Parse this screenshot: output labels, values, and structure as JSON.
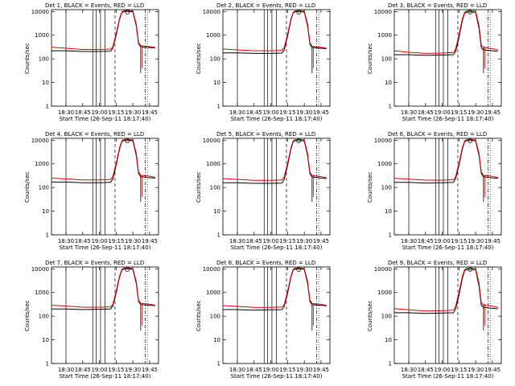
{
  "colors": {
    "events": "#000000",
    "lld": "#e00000",
    "axes": "#000000",
    "background": "#ffffff"
  },
  "chart_data": [
    {
      "type": "line",
      "title": "Det 1, BLACK = Events, RED = LLD",
      "ylabel": "Counts/sec",
      "xlabel": "Start Time (26-Sep-11 18:17:40)",
      "x_ticks": [
        "18:30",
        "18:45",
        "19:00",
        "19:15",
        "19:30",
        "19:45"
      ],
      "y_ticks": [
        "1",
        "10",
        "100",
        "1000",
        "10000"
      ],
      "ylim": [
        1,
        12000
      ],
      "scale": "log",
      "series": [
        {
          "name": "Events",
          "values_x": [
            "18:17",
            "18:30",
            "18:45",
            "19:00",
            "19:10",
            "19:12",
            "19:15",
            "19:18",
            "19:20",
            "19:22",
            "19:27",
            "19:30",
            "19:33",
            "19:35",
            "19:37",
            "19:45",
            "19:50"
          ],
          "values_y": [
            220,
            220,
            205,
            205,
            210,
            280,
            1000,
            4500,
            9000,
            10000,
            10000,
            9800,
            2500,
            450,
            320,
            300,
            290
          ]
        },
        {
          "name": "LLD",
          "values_x": [
            "18:17",
            "18:30",
            "18:45",
            "19:00",
            "19:10",
            "19:12",
            "19:15",
            "19:18",
            "19:20",
            "19:22",
            "19:27",
            "19:30",
            "19:33",
            "19:35",
            "19:37",
            "19:45",
            "19:50"
          ],
          "values_y": [
            310,
            280,
            250,
            250,
            260,
            320,
            1200,
            5000,
            9500,
            11000,
            11000,
            10500,
            3000,
            500,
            360,
            330,
            300
          ]
        }
      ]
    },
    {
      "type": "line",
      "title": "Det 2, BLACK = Events, RED = LLD",
      "ylabel": "Counts/sec",
      "xlabel": "Start Time (26-Sep-11 18:17:40)",
      "x_ticks": [
        "18:30",
        "18:45",
        "19:00",
        "19:15",
        "19:30",
        "19:45"
      ],
      "y_ticks": [
        "1",
        "10",
        "100",
        "1000",
        "10000"
      ],
      "ylim": [
        1,
        12000
      ],
      "scale": "log",
      "series": [
        {
          "name": "Events",
          "values_x": [
            "18:17",
            "18:30",
            "18:45",
            "19:00",
            "19:10",
            "19:12",
            "19:15",
            "19:18",
            "19:20",
            "19:22",
            "19:27",
            "19:30",
            "19:33",
            "19:35",
            "19:37",
            "19:45",
            "19:50"
          ],
          "values_y": [
            180,
            180,
            170,
            170,
            175,
            240,
            900,
            4300,
            8800,
            9800,
            9800,
            9500,
            2400,
            420,
            300,
            280,
            270
          ]
        },
        {
          "name": "LLD",
          "values_x": [
            "18:17",
            "18:30",
            "18:45",
            "19:00",
            "19:10",
            "19:12",
            "19:15",
            "19:18",
            "19:20",
            "19:22",
            "19:27",
            "19:30",
            "19:33",
            "19:35",
            "19:37",
            "19:45",
            "19:50"
          ],
          "values_y": [
            260,
            240,
            220,
            220,
            230,
            300,
            1100,
            4800,
            9300,
            10800,
            10800,
            10300,
            2900,
            480,
            340,
            310,
            280
          ]
        }
      ]
    },
    {
      "type": "line",
      "title": "Det 3, BLACK = Events, RED = LLD",
      "ylabel": "Counts/sec",
      "xlabel": "Start Time (26-Sep-11 18:17:40)",
      "x_ticks": [
        "18:30",
        "18:45",
        "19:00",
        "19:15",
        "19:30",
        "19:45"
      ],
      "y_ticks": [
        "1",
        "10",
        "100",
        "1000",
        "10000"
      ],
      "ylim": [
        1,
        12000
      ],
      "scale": "log",
      "series": [
        {
          "name": "Events",
          "values_x": [
            "18:17",
            "18:30",
            "18:45",
            "19:00",
            "19:10",
            "19:12",
            "19:15",
            "19:18",
            "19:20",
            "19:22",
            "19:27",
            "19:30",
            "19:33",
            "19:35",
            "19:37",
            "19:45",
            "19:50"
          ],
          "values_y": [
            150,
            150,
            140,
            145,
            150,
            200,
            800,
            4000,
            8500,
            9500,
            9500,
            9200,
            1900,
            300,
            240,
            220,
            210
          ]
        },
        {
          "name": "LLD",
          "values_x": [
            "18:17",
            "18:30",
            "18:45",
            "19:00",
            "19:10",
            "19:12",
            "19:15",
            "19:18",
            "19:20",
            "19:22",
            "19:27",
            "19:30",
            "19:33",
            "19:35",
            "19:37",
            "19:45",
            "19:50"
          ],
          "values_y": [
            220,
            190,
            170,
            175,
            185,
            260,
            1050,
            4700,
            9200,
            10700,
            10700,
            10200,
            2500,
            380,
            300,
            270,
            240
          ]
        }
      ]
    },
    {
      "type": "line",
      "title": "Det 4, BLACK = Events, RED = LLD",
      "ylabel": "Counts/sec",
      "xlabel": "Start Time (26-Sep-11 18:17:40)",
      "x_ticks": [
        "18:30",
        "18:45",
        "19:00",
        "19:15",
        "19:30",
        "19:45"
      ],
      "y_ticks": [
        "1",
        "10",
        "100",
        "1000",
        "10000"
      ],
      "ylim": [
        1,
        12000
      ],
      "scale": "log",
      "series": [
        {
          "name": "Events",
          "values_x": [
            "18:17",
            "18:30",
            "18:45",
            "19:00",
            "19:10",
            "19:12",
            "19:15",
            "19:18",
            "19:20",
            "19:22",
            "19:27",
            "19:30",
            "19:33",
            "19:35",
            "19:37",
            "19:45",
            "19:50"
          ],
          "values_y": [
            170,
            170,
            160,
            160,
            165,
            230,
            880,
            4200,
            8700,
            9700,
            9700,
            9400,
            2300,
            400,
            290,
            260,
            250
          ]
        },
        {
          "name": "LLD",
          "values_x": [
            "18:17",
            "18:30",
            "18:45",
            "19:00",
            "19:10",
            "19:12",
            "19:15",
            "19:18",
            "19:20",
            "19:22",
            "19:27",
            "19:30",
            "19:33",
            "19:35",
            "19:37",
            "19:45",
            "19:50"
          ],
          "values_y": [
            250,
            230,
            210,
            210,
            220,
            290,
            1080,
            4750,
            9250,
            10750,
            10750,
            10250,
            2800,
            460,
            330,
            300,
            270
          ]
        }
      ]
    },
    {
      "type": "line",
      "title": "Det 5, BLACK = Events, RED = LLD",
      "ylabel": "Counts/sec",
      "xlabel": "Start Time (26-Sep-11 18:17:40)",
      "x_ticks": [
        "18:30",
        "18:45",
        "19:00",
        "19:15",
        "19:30",
        "19:45"
      ],
      "y_ticks": [
        "1",
        "10",
        "100",
        "1000",
        "10000"
      ],
      "ylim": [
        1,
        12000
      ],
      "scale": "log",
      "series": [
        {
          "name": "Events",
          "values_x": [
            "18:17",
            "18:30",
            "18:45",
            "19:00",
            "19:10",
            "19:12",
            "19:15",
            "19:18",
            "19:20",
            "19:22",
            "19:27",
            "19:30",
            "19:33",
            "19:35",
            "19:37",
            "19:45",
            "19:50"
          ],
          "values_y": [
            160,
            160,
            150,
            150,
            155,
            220,
            860,
            4100,
            8600,
            9600,
            9600,
            9300,
            2200,
            390,
            280,
            250,
            240
          ]
        },
        {
          "name": "LLD",
          "values_x": [
            "18:17",
            "18:30",
            "18:45",
            "19:00",
            "19:10",
            "19:12",
            "19:15",
            "19:18",
            "19:20",
            "19:22",
            "19:27",
            "19:30",
            "19:33",
            "19:35",
            "19:37",
            "19:45",
            "19:50"
          ],
          "values_y": [
            240,
            220,
            200,
            200,
            210,
            280,
            1060,
            4700,
            9200,
            10700,
            10700,
            10200,
            2700,
            450,
            320,
            290,
            260
          ]
        }
      ]
    },
    {
      "type": "line",
      "title": "Det 6, BLACK = Events, RED = LLD",
      "ylabel": "Counts/sec",
      "xlabel": "Start Time (26-Sep-11 18:17:40)",
      "x_ticks": [
        "18:30",
        "18:45",
        "19:00",
        "19:15",
        "19:30",
        "19:45"
      ],
      "y_ticks": [
        "1",
        "10",
        "100",
        "1000",
        "10000"
      ],
      "ylim": [
        1,
        12000
      ],
      "scale": "log",
      "series": [
        {
          "name": "Events",
          "values_x": [
            "18:17",
            "18:30",
            "18:45",
            "19:00",
            "19:10",
            "19:12",
            "19:15",
            "19:18",
            "19:20",
            "19:22",
            "19:27",
            "19:30",
            "19:33",
            "19:35",
            "19:37",
            "19:45",
            "19:50"
          ],
          "values_y": [
            165,
            165,
            155,
            160,
            165,
            230,
            870,
            4150,
            8650,
            9650,
            9650,
            9350,
            2250,
            395,
            285,
            255,
            245
          ]
        },
        {
          "name": "LLD",
          "values_x": [
            "18:17",
            "18:30",
            "18:45",
            "19:00",
            "19:10",
            "19:12",
            "19:15",
            "19:18",
            "19:20",
            "19:22",
            "19:27",
            "19:30",
            "19:33",
            "19:35",
            "19:37",
            "19:45",
            "19:50"
          ],
          "values_y": [
            245,
            225,
            205,
            205,
            215,
            285,
            1070,
            4720,
            9220,
            10720,
            10720,
            10220,
            2750,
            455,
            325,
            295,
            265
          ]
        }
      ]
    },
    {
      "type": "line",
      "title": "Det 7, BLACK = Events, RED = LLD",
      "ylabel": "Counts/sec",
      "xlabel": "Start Time (26-Sep-11 18:17:40)",
      "x_ticks": [
        "18:30",
        "18:45",
        "19:00",
        "19:15",
        "19:30",
        "19:45"
      ],
      "y_ticks": [
        "1",
        "10",
        "100",
        "1000",
        "10000"
      ],
      "ylim": [
        1,
        12000
      ],
      "scale": "log",
      "series": [
        {
          "name": "Events",
          "values_x": [
            "18:17",
            "18:30",
            "18:45",
            "19:00",
            "19:10",
            "19:12",
            "19:15",
            "19:18",
            "19:20",
            "19:22",
            "19:27",
            "19:30",
            "19:33",
            "19:35",
            "19:37",
            "19:45",
            "19:50"
          ],
          "values_y": [
            200,
            200,
            190,
            195,
            200,
            270,
            950,
            4400,
            8900,
            9900,
            9900,
            9600,
            2450,
            430,
            310,
            290,
            280
          ]
        },
        {
          "name": "LLD",
          "values_x": [
            "18:17",
            "18:30",
            "18:45",
            "19:00",
            "19:10",
            "19:12",
            "19:15",
            "19:18",
            "19:20",
            "19:22",
            "19:27",
            "19:30",
            "19:33",
            "19:35",
            "19:37",
            "19:45",
            "19:50"
          ],
          "values_y": [
            290,
            270,
            240,
            240,
            250,
            310,
            1150,
            4900,
            9400,
            10900,
            10900,
            10400,
            2950,
            490,
            350,
            320,
            290
          ]
        }
      ]
    },
    {
      "type": "line",
      "title": "Det 8, BLACK = Events, RED = LLD",
      "ylabel": "Counts/sec",
      "xlabel": "Start Time (26-Sep-11 18:17:40)",
      "x_ticks": [
        "18:30",
        "18:45",
        "19:00",
        "19:15",
        "19:30",
        "19:45"
      ],
      "y_ticks": [
        "1",
        "10",
        "100",
        "1000",
        "10000"
      ],
      "ylim": [
        1,
        12000
      ],
      "scale": "log",
      "series": [
        {
          "name": "Events",
          "values_x": [
            "18:17",
            "18:30",
            "18:45",
            "19:00",
            "19:10",
            "19:12",
            "19:15",
            "19:18",
            "19:20",
            "19:22",
            "19:27",
            "19:30",
            "19:33",
            "19:35",
            "19:37",
            "19:45",
            "19:50"
          ],
          "values_y": [
            190,
            190,
            180,
            185,
            190,
            260,
            930,
            4350,
            8850,
            9850,
            9850,
            9550,
            2400,
            425,
            305,
            285,
            275
          ]
        },
        {
          "name": "LLD",
          "values_x": [
            "18:17",
            "18:30",
            "18:45",
            "19:00",
            "19:10",
            "19:12",
            "19:15",
            "19:18",
            "19:20",
            "19:22",
            "19:27",
            "19:30",
            "19:33",
            "19:35",
            "19:37",
            "19:45",
            "19:50"
          ],
          "values_y": [
            280,
            260,
            235,
            235,
            245,
            305,
            1140,
            4880,
            9380,
            10880,
            10880,
            10380,
            2900,
            485,
            345,
            315,
            285
          ]
        }
      ]
    },
    {
      "type": "line",
      "title": "Det 9, BLACK = Events, RED = LLD",
      "ylabel": "Counts/sec",
      "xlabel": "Start Time (26-Sep-11 18:17:40)",
      "x_ticks": [
        "18:30",
        "18:45",
        "19:00",
        "19:15",
        "19:30",
        "19:45"
      ],
      "y_ticks": [
        "1",
        "10",
        "100",
        "1000",
        "10000"
      ],
      "ylim": [
        1,
        12000
      ],
      "scale": "log",
      "series": [
        {
          "name": "Events",
          "values_x": [
            "18:17",
            "18:30",
            "18:45",
            "19:00",
            "19:10",
            "19:12",
            "19:15",
            "19:18",
            "19:20",
            "19:22",
            "19:27",
            "19:30",
            "19:33",
            "19:35",
            "19:37",
            "19:45",
            "19:50"
          ],
          "values_y": [
            140,
            140,
            130,
            135,
            140,
            195,
            780,
            3900,
            8400,
            9400,
            9400,
            9100,
            1850,
            290,
            235,
            215,
            205
          ]
        },
        {
          "name": "LLD",
          "values_x": [
            "18:17",
            "18:30",
            "18:45",
            "19:00",
            "19:10",
            "19:12",
            "19:15",
            "19:18",
            "19:20",
            "19:22",
            "19:27",
            "19:30",
            "19:33",
            "19:35",
            "19:37",
            "19:45",
            "19:50"
          ],
          "values_y": [
            210,
            185,
            165,
            170,
            180,
            255,
            1040,
            4680,
            9180,
            10680,
            10680,
            10180,
            2450,
            375,
            295,
            265,
            235
          ]
        }
      ]
    }
  ]
}
